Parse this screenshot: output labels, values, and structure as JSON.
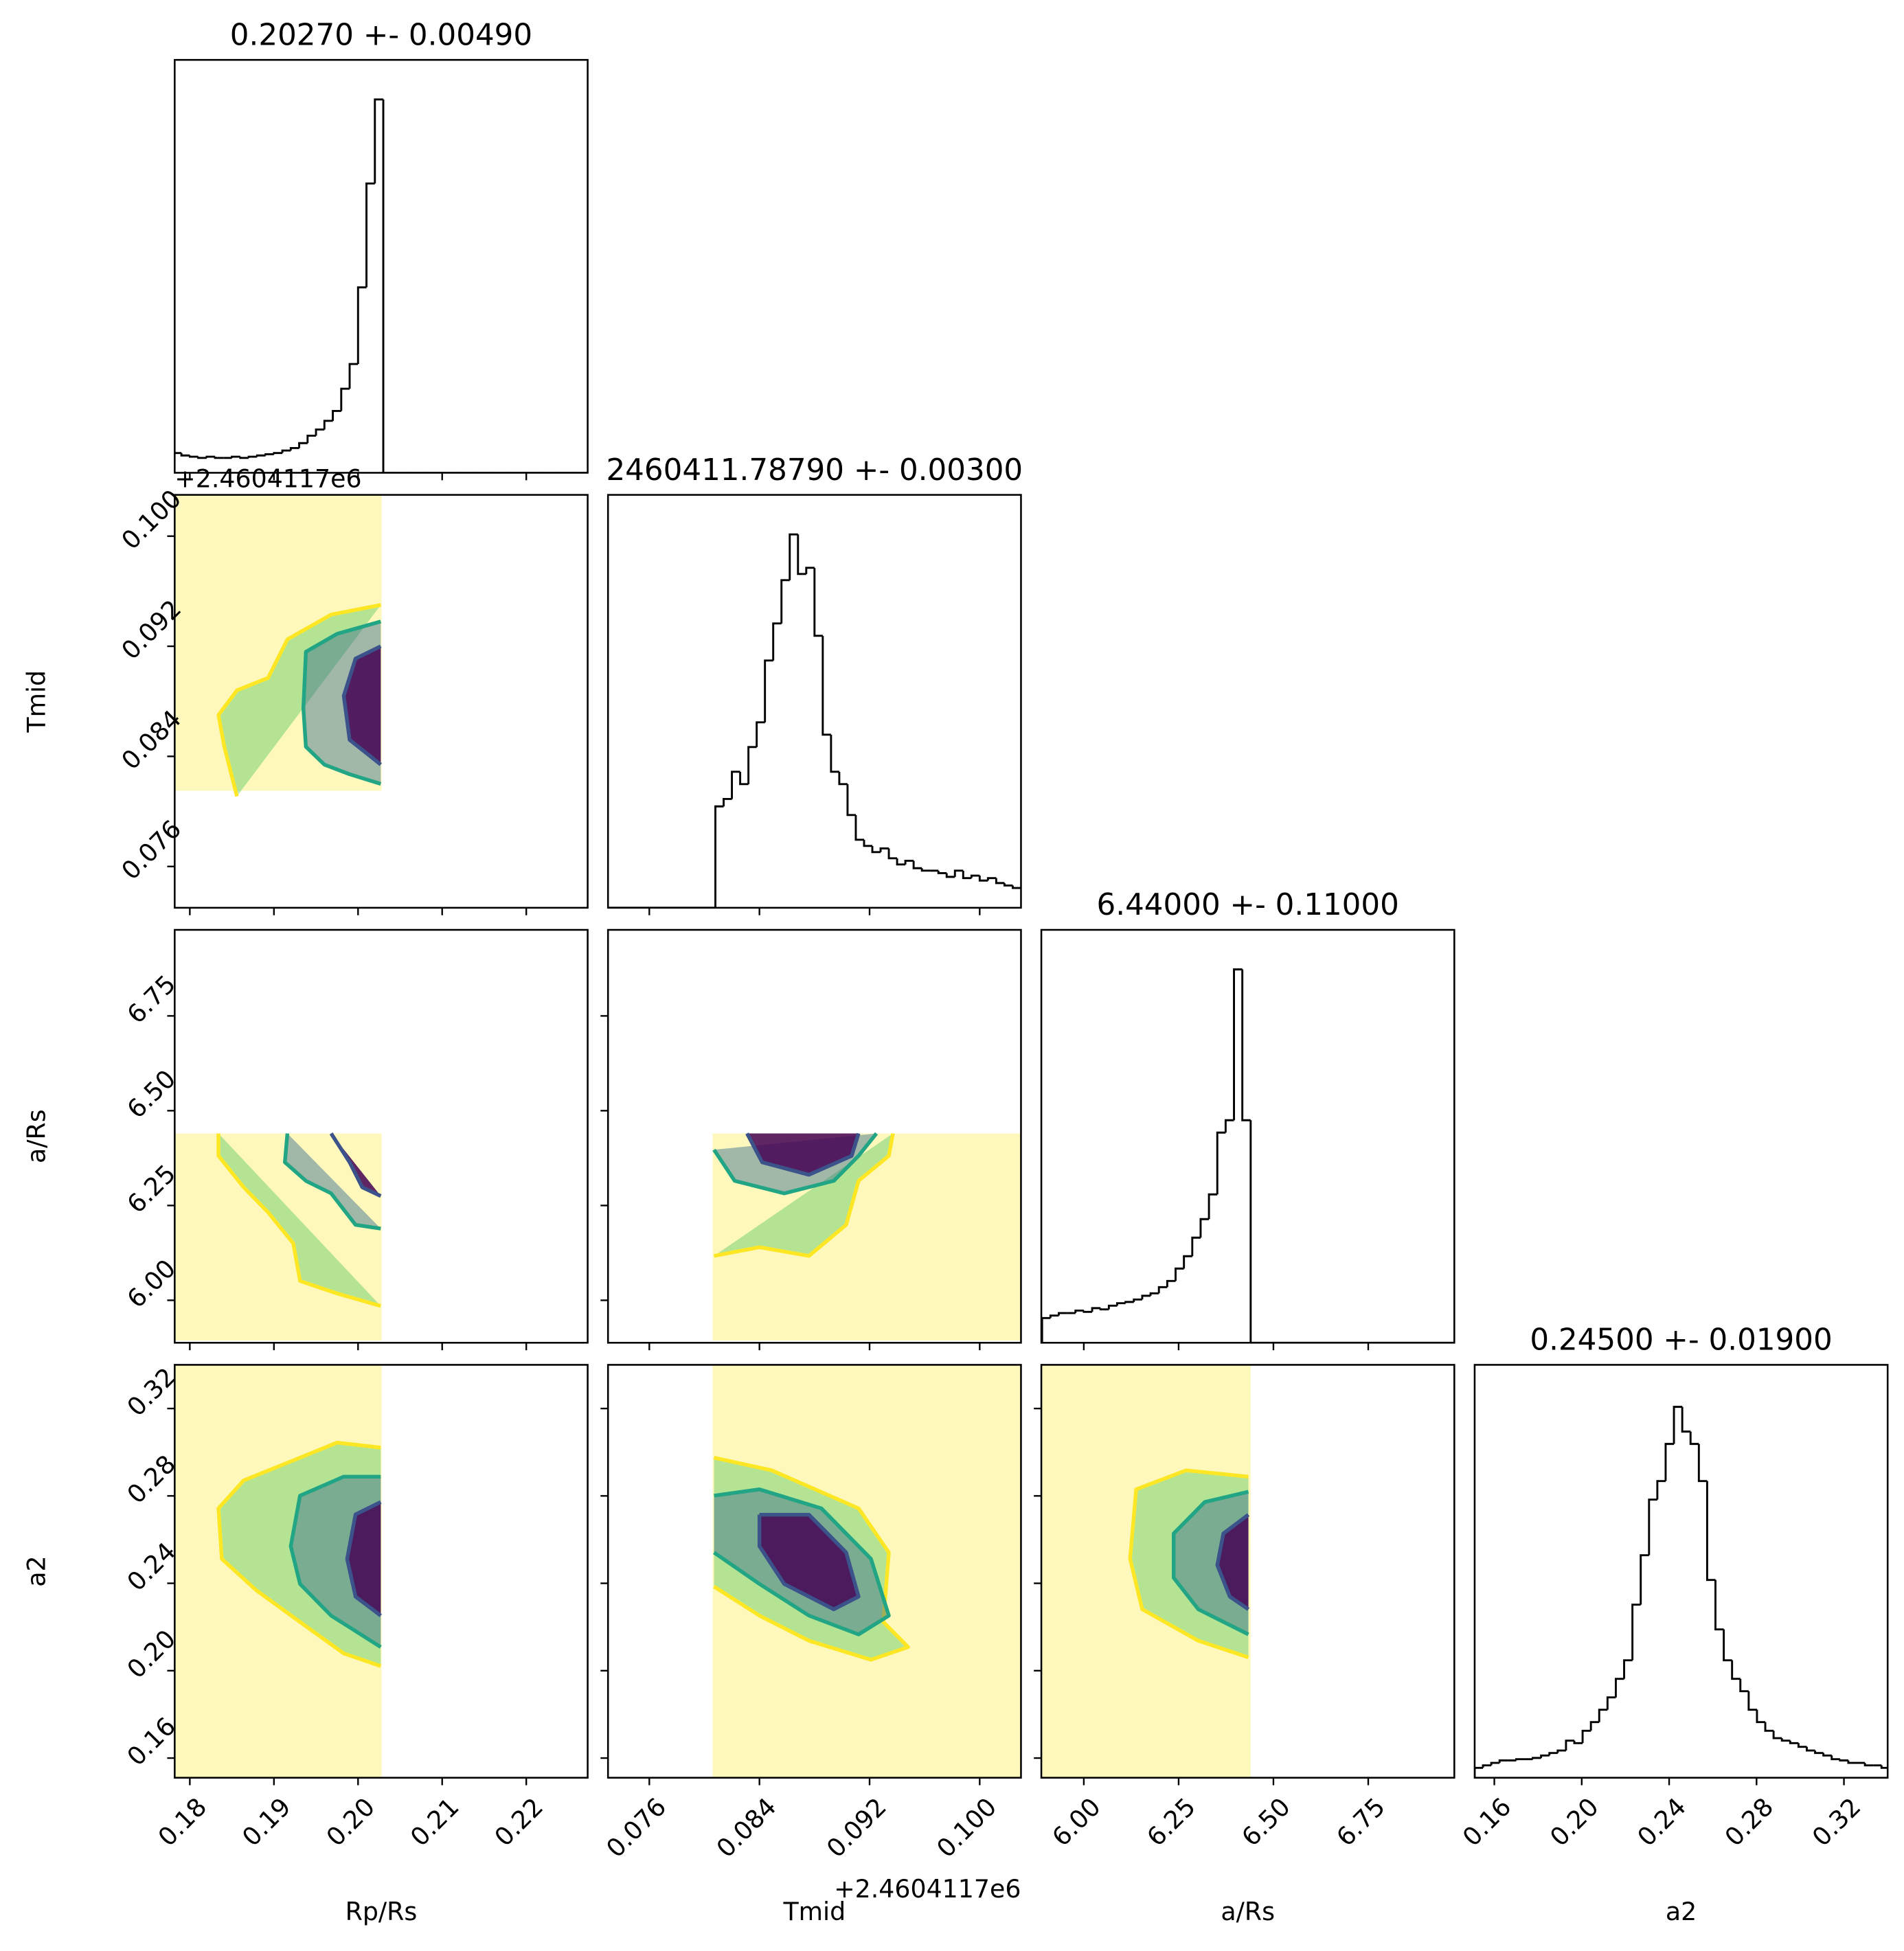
{
  "chart_data": {
    "type": "corner",
    "offset_text": "+2.4604117e6",
    "hist_ylim": [
      0,
      334
    ],
    "hist_color": "#000000",
    "cloud_color": "#fde725",
    "parameters": [
      {
        "label": "Rp/Rs",
        "title": "0.20270 +- 0.00490",
        "lim": [
          0.1782,
          0.2273
        ],
        "ticks": [
          0.18,
          0.19,
          {
            "value": 0.2,
            "label": "0.20"
          },
          0.21,
          0.22
        ],
        "bins": [
          0.178,
          0.179,
          0.18,
          0.181,
          0.182,
          0.183,
          0.184,
          0.185,
          0.186,
          0.187,
          0.188,
          0.189,
          0.19,
          0.191,
          0.192,
          0.193,
          0.194,
          0.195,
          0.196,
          0.197,
          0.198,
          0.199,
          0.2,
          0.201,
          0.202,
          0.203,
          0.204,
          0.205,
          0.206,
          0.207,
          0.208,
          0.209,
          0.21,
          0.211,
          0.212,
          0.213,
          0.214,
          0.215,
          0.216,
          0.217,
          0.218,
          0.219,
          0.22,
          0.221,
          0.222,
          0.223,
          0.224,
          0.225,
          0.226,
          0.227,
          0.228
        ],
        "counts": [
          16,
          14,
          13,
          12,
          13,
          12,
          12,
          13,
          12,
          13,
          14,
          15,
          16,
          18,
          20,
          24,
          30,
          35,
          42,
          50,
          68,
          88,
          150,
          234,
          302,
          0,
          0,
          0,
          0,
          0,
          0,
          0,
          0,
          0,
          0,
          0,
          0,
          0,
          0,
          0,
          0,
          0,
          0,
          0,
          0,
          0,
          0,
          0,
          0,
          0
        ]
      },
      {
        "label": "Tmid",
        "title": "2460411.78790 +- 0.00300",
        "lim": [
          0.073,
          0.103
        ],
        "ticks": [
          0.076,
          0.084,
          0.092,
          {
            "value": 0.1,
            "label": "0.100"
          }
        ],
        "bins": [
          0.073,
          0.0736,
          0.0742,
          0.0748,
          0.0754,
          0.076,
          0.0766,
          0.0772,
          0.0778,
          0.0784,
          0.079,
          0.0796,
          0.0802,
          0.0808,
          0.0814,
          0.082,
          0.0826,
          0.0832,
          0.0838,
          0.0844,
          0.085,
          0.0856,
          0.0862,
          0.0868,
          0.0874,
          0.088,
          0.0886,
          0.0892,
          0.0898,
          0.0904,
          0.091,
          0.0916,
          0.0922,
          0.0928,
          0.0934,
          0.094,
          0.0946,
          0.0952,
          0.0958,
          0.0964,
          0.097,
          0.0976,
          0.0982,
          0.0988,
          0.0994,
          0.1,
          0.1006,
          0.1012,
          0.1018,
          0.1024,
          0.103
        ],
        "counts": [
          0,
          0,
          0,
          0,
          0,
          0,
          0,
          0,
          0,
          0,
          0,
          0,
          0,
          82,
          88,
          110,
          100,
          130,
          150,
          200,
          230,
          265,
          302,
          270,
          275,
          220,
          140,
          110,
          100,
          75,
          55,
          50,
          45,
          48,
          40,
          35,
          38,
          32,
          30,
          30,
          28,
          25,
          30,
          24,
          26,
          22,
          24,
          20,
          18,
          16
        ]
      },
      {
        "label": "a/Rs",
        "title": "6.44000 +- 0.11000",
        "lim": [
          5.888,
          6.977
        ],
        "ticks": [
          {
            "value": 6,
            "label": "6.00"
          },
          6.25,
          {
            "value": 6.5,
            "label": "6.50"
          },
          6.75
        ],
        "bins": [
          5.89,
          5.912,
          5.934,
          5.956,
          5.978,
          6.0,
          6.022,
          6.044,
          6.066,
          6.088,
          6.11,
          6.132,
          6.154,
          6.176,
          6.198,
          6.22,
          6.242,
          6.264,
          6.286,
          6.308,
          6.33,
          6.352,
          6.374,
          6.396,
          6.418,
          6.44,
          6.462,
          6.484,
          6.506,
          6.528,
          6.55,
          6.572,
          6.594,
          6.616,
          6.638,
          6.66,
          6.682,
          6.704,
          6.726,
          6.748,
          6.77,
          6.792,
          6.814,
          6.836,
          6.858,
          6.88,
          6.902,
          6.924,
          6.946,
          6.968,
          6.99
        ],
        "counts": [
          20,
          22,
          24,
          24,
          26,
          25,
          28,
          27,
          30,
          32,
          33,
          35,
          38,
          40,
          45,
          50,
          60,
          70,
          85,
          100,
          120,
          170,
          180,
          302,
          180,
          0,
          0,
          0,
          0,
          0,
          0,
          0,
          0,
          0,
          0,
          0,
          0,
          0,
          0,
          0,
          0,
          0,
          0,
          0,
          0,
          0,
          0,
          0,
          0,
          0
        ]
      },
      {
        "label": "a2",
        "title": "0.24500 +- 0.01900",
        "lim": [
          0.151,
          0.34
        ],
        "ticks": [
          0.16,
          {
            "value": 0.2,
            "label": "0.20"
          },
          0.24,
          0.28,
          0.32
        ],
        "bins": [
          0.151,
          0.1548,
          0.1586,
          0.1624,
          0.1662,
          0.17,
          0.1738,
          0.1776,
          0.1814,
          0.1852,
          0.189,
          0.1928,
          0.1966,
          0.2004,
          0.2042,
          0.208,
          0.2118,
          0.2156,
          0.2194,
          0.2232,
          0.227,
          0.2308,
          0.2346,
          0.2384,
          0.2422,
          0.246,
          0.2498,
          0.2536,
          0.2574,
          0.2612,
          0.265,
          0.2688,
          0.2726,
          0.2764,
          0.2802,
          0.284,
          0.2878,
          0.2916,
          0.2954,
          0.2992,
          0.303,
          0.3068,
          0.3106,
          0.3144,
          0.3182,
          0.322,
          0.3258,
          0.3296,
          0.3334,
          0.3372,
          0.341
        ],
        "counts": [
          8,
          10,
          12,
          14,
          14,
          15,
          15,
          16,
          18,
          20,
          22,
          30,
          28,
          38,
          45,
          55,
          65,
          80,
          95,
          140,
          180,
          225,
          240,
          270,
          300,
          280,
          270,
          240,
          160,
          120,
          95,
          80,
          70,
          55,
          45,
          38,
          32,
          30,
          28,
          25,
          22,
          20,
          18,
          15,
          14,
          12,
          12,
          10,
          10,
          8
        ]
      }
    ],
    "pairs": [
      {
        "x": 0,
        "y": 1,
        "cloud": {
          "x": [
            0.1782,
            0.2028,
            0.2028,
            0.1782
          ],
          "y": [
            0.103,
            0.103,
            0.0815,
            0.0815
          ]
        },
        "contours": [
          {
            "color": "#fde725",
            "fill": "#5ec962",
            "x": [
              0.1856,
              0.1841,
              0.1834,
              0.1856,
              0.1893,
              0.1916,
              0.1968,
              0.2027
            ],
            "y": [
              0.0811,
              0.0847,
              0.087,
              0.0888,
              0.0897,
              0.0925,
              0.0943,
              0.095
            ]
          },
          {
            "color": "#21a585",
            "fill": "#31688e",
            "x": [
              0.2027,
              0.1975,
              0.1938,
              0.1935,
              0.1938,
              0.196,
              0.199,
              0.2027
            ],
            "y": [
              0.0938,
              0.0929,
              0.0916,
              0.0875,
              0.0847,
              0.0834,
              0.0827,
              0.082
            ]
          },
          {
            "color": "#3b528b",
            "fill": "#440154",
            "x": [
              0.2027,
              0.1997,
              0.1983,
              0.199,
              0.2027
            ],
            "y": [
              0.092,
              0.0911,
              0.0884,
              0.0852,
              0.0834
            ]
          }
        ]
      },
      {
        "x": 0,
        "y": 2,
        "cloud": {
          "x": [
            0.1782,
            0.2028,
            0.2028,
            0.1782
          ],
          "y": [
            6.44,
            6.44,
            5.894,
            5.894
          ]
        },
        "contours": [
          {
            "color": "#fde725",
            "fill": "#5ec962",
            "x": [
              0.1834,
              0.1834,
              0.1864,
              0.1893,
              0.1923,
              0.1931,
              0.1975,
              0.2027
            ],
            "y": [
              6.44,
              6.381,
              6.298,
              6.232,
              6.15,
              6.051,
              6.018,
              5.985
            ]
          },
          {
            "color": "#21a585",
            "fill": "#31688e",
            "x": [
              0.1916,
              0.1913,
              0.1938,
              0.1968,
              0.1997,
              0.2027
            ],
            "y": [
              6.44,
              6.364,
              6.315,
              6.282,
              6.199,
              6.189
            ]
          },
          {
            "color": "#3b528b",
            "fill": "#440154",
            "x": [
              0.1968,
              0.199,
              0.2005,
              0.2027
            ],
            "y": [
              6.44,
              6.364,
              6.298,
              6.275
            ]
          }
        ]
      },
      {
        "x": 1,
        "y": 2,
        "cloud": {
          "x": [
            0.0806,
            0.103,
            0.103,
            0.0806
          ],
          "y": [
            6.44,
            6.44,
            5.894,
            5.894
          ]
        },
        "contours": [
          {
            "color": "#fde725",
            "fill": "#5ec962",
            "x": [
              0.0807,
              0.084,
              0.0876,
              0.0903,
              0.0912,
              0.0934,
              0.0937
            ],
            "y": [
              6.117,
              6.14,
              6.117,
              6.199,
              6.315,
              6.381,
              6.44
            ]
          },
          {
            "color": "#21a585",
            "fill": "#31688e",
            "x": [
              0.0807,
              0.0822,
              0.0858,
              0.0894,
              0.0912,
              0.0925
            ],
            "y": [
              6.397,
              6.315,
              6.282,
              6.315,
              6.381,
              6.44
            ]
          },
          {
            "color": "#3b528b",
            "fill": "#440154",
            "x": [
              0.0831,
              0.0842,
              0.0876,
              0.0907,
              0.0912
            ],
            "y": [
              6.44,
              6.364,
              6.331,
              6.381,
              6.44
            ]
          }
        ]
      },
      {
        "x": 0,
        "y": 3,
        "cloud": {
          "x": [
            0.1782,
            0.2028,
            0.2028,
            0.1782
          ],
          "y": [
            0.3414,
            0.3414,
            0.1508,
            0.1508
          ]
        },
        "contours": [
          {
            "color": "#fde725",
            "fill": "#5ec962",
            "x": [
              0.2027,
              0.1975,
              0.1931,
              0.1864,
              0.1834,
              0.1838,
              0.1879,
              0.1931,
              0.1983,
              0.2027
            ],
            "y": [
              0.3021,
              0.3044,
              0.2975,
              0.2871,
              0.2743,
              0.2512,
              0.2368,
              0.2223,
              0.2079,
              0.2021
            ]
          },
          {
            "color": "#21a585",
            "fill": "#31688e",
            "x": [
              0.2027,
              0.1983,
              0.1931,
              0.192,
              0.1931,
              0.1968,
              0.2027
            ],
            "y": [
              0.2888,
              0.2888,
              0.2801,
              0.257,
              0.2397,
              0.2252,
              0.2108
            ]
          },
          {
            "color": "#3b528b",
            "fill": "#440154",
            "x": [
              0.2027,
              0.1997,
              0.1987,
              0.1997,
              0.2027
            ],
            "y": [
              0.2772,
              0.2715,
              0.2512,
              0.2339,
              0.2252
            ]
          }
        ]
      },
      {
        "x": 1,
        "y": 3,
        "cloud": {
          "x": [
            0.0806,
            0.103,
            0.103,
            0.0806
          ],
          "y": [
            0.3414,
            0.3414,
            0.1508,
            0.1508
          ]
        },
        "contours": [
          {
            "color": "#fde725",
            "fill": "#5ec962",
            "x": [
              0.0807,
              0.0849,
              0.0912,
              0.0934,
              0.093,
              0.0948,
              0.0921,
              0.0876,
              0.084,
              0.0807
            ],
            "y": [
              0.2975,
              0.2917,
              0.2743,
              0.2541,
              0.2223,
              0.2108,
              0.205,
              0.2137,
              0.2252,
              0.2385
            ]
          },
          {
            "color": "#21a585",
            "fill": "#31688e",
            "x": [
              0.0807,
              0.084,
              0.0885,
              0.0921,
              0.0934,
              0.0912,
              0.0876,
              0.084,
              0.0807
            ],
            "y": [
              0.2801,
              0.283,
              0.2743,
              0.2512,
              0.2252,
              0.2166,
              0.2252,
              0.2397,
              0.2541
            ]
          },
          {
            "color": "#3b528b",
            "fill": "#440154",
            "x": [
              0.084,
              0.0876,
              0.0903,
              0.0912,
              0.0894,
              0.0858,
              0.084,
              0.084
            ],
            "y": [
              0.2714,
              0.2714,
              0.2541,
              0.2339,
              0.2281,
              0.2397,
              0.257,
              0.2714
            ]
          }
        ]
      },
      {
        "x": 2,
        "y": 3,
        "cloud": {
          "x": [
            5.888,
            6.44,
            6.44,
            5.888
          ],
          "y": [
            0.3414,
            0.3414,
            0.1508,
            0.1508
          ]
        },
        "contours": [
          {
            "color": "#fde725",
            "fill": "#5ec962",
            "x": [
              6.434,
              6.27,
              6.138,
              6.122,
              6.154,
              6.302,
              6.434
            ],
            "y": [
              0.2888,
              0.2917,
              0.283,
              0.2512,
              0.2281,
              0.2137,
              0.2061
            ]
          },
          {
            "color": "#21a585",
            "fill": "#31688e",
            "x": [
              6.434,
              6.319,
              6.237,
              6.237,
              6.302,
              6.434
            ],
            "y": [
              0.2819,
              0.2772,
              0.2628,
              0.2425,
              0.2281,
              0.2166
            ]
          },
          {
            "color": "#3b528b",
            "fill": "#440154",
            "x": [
              6.434,
              6.368,
              6.352,
              6.385,
              6.434
            ],
            "y": [
              0.2714,
              0.2628,
              0.2483,
              0.2339,
              0.2281
            ]
          }
        ]
      }
    ]
  }
}
